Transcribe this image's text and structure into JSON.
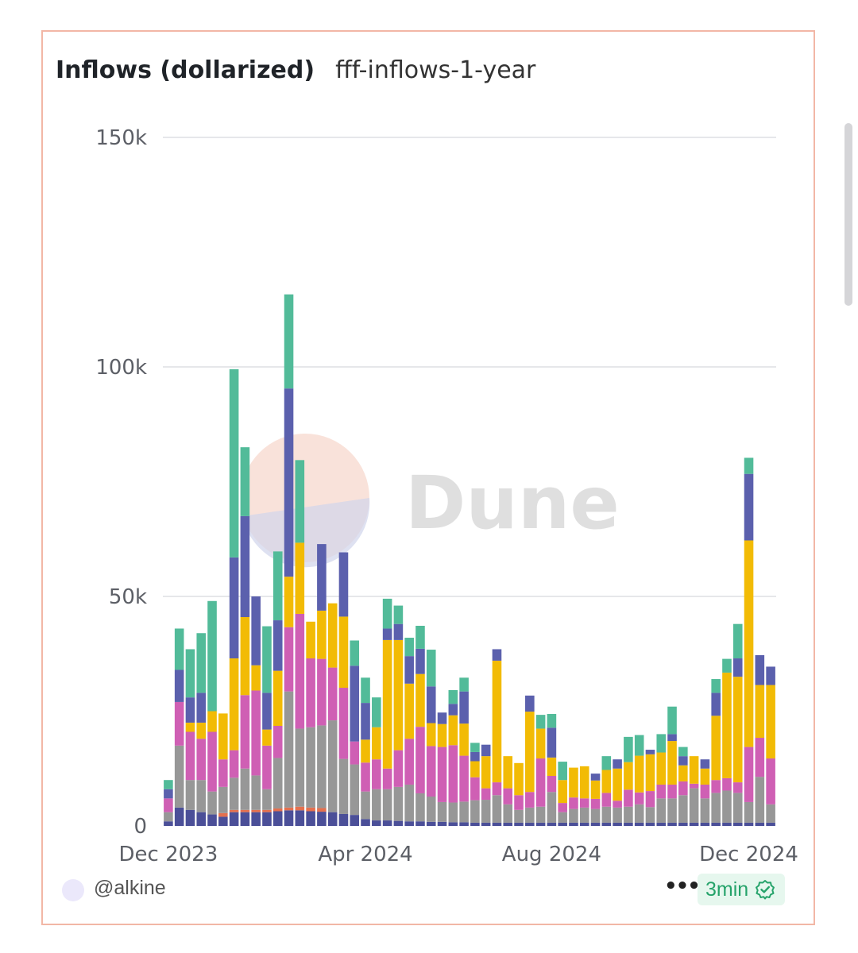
{
  "header": {
    "title": "Inflows (dollarized)",
    "subtitle": "fff-inflows-1-year"
  },
  "watermark": {
    "text": "Dune"
  },
  "footer": {
    "author": "@alkine",
    "more_icon": "more-horizontal-icon",
    "refresh_label": "3min",
    "status_icon": "check-badge-icon"
  },
  "colors": {
    "accent": "#f2b7a6",
    "badge_green": "#25a36a"
  },
  "chart_data": {
    "type": "bar",
    "stacked": true,
    "title": "",
    "xlabel": "",
    "ylabel": "",
    "ylim": [
      0,
      150000
    ],
    "y_ticks": [
      {
        "value": 0,
        "label": "0"
      },
      {
        "value": 50000,
        "label": "50k"
      },
      {
        "value": 100000,
        "label": "100k"
      },
      {
        "value": 150000,
        "label": "150k"
      }
    ],
    "x_ticks": [
      {
        "index": 0,
        "label": "Dec 2023"
      },
      {
        "index": 18,
        "label": "Apr 2024"
      },
      {
        "index": 35,
        "label": "Aug 2024"
      },
      {
        "index": 53,
        "label": "Dec 2024"
      }
    ],
    "grid": true,
    "series": [
      {
        "color": "#4b4f98",
        "values": [
          1000,
          4000,
          3500,
          3000,
          2500,
          2000,
          3000,
          3000,
          3000,
          3000,
          3200,
          3400,
          3400,
          3200,
          3100,
          3000,
          2600,
          2400,
          1500,
          1200,
          1200,
          1100,
          1000,
          1000,
          900,
          900,
          800,
          800,
          700,
          700,
          700,
          700,
          700,
          700,
          700,
          700,
          700,
          700,
          700,
          700,
          700,
          700,
          700,
          700,
          700,
          700,
          700,
          700,
          700,
          700,
          700,
          700,
          700,
          700,
          700,
          700
        ]
      },
      {
        "color": "#e4704f",
        "values": [
          0,
          0,
          0,
          0,
          0,
          800,
          500,
          500,
          500,
          500,
          600,
          600,
          800,
          800,
          800,
          0,
          0,
          0,
          0,
          0,
          0,
          0,
          0,
          0,
          0,
          0,
          0,
          0,
          0,
          0,
          0,
          0,
          0,
          0,
          0,
          0,
          0,
          0,
          0,
          0,
          0,
          0,
          0,
          0,
          0,
          0,
          0,
          0,
          0,
          0,
          0,
          0,
          0,
          0,
          0,
          0
        ]
      },
      {
        "color": "#979797",
        "values": [
          2000,
          13500,
          6500,
          7000,
          5000,
          5700,
          7000,
          9000,
          7500,
          4500,
          11000,
          25300,
          17000,
          17500,
          18000,
          20000,
          12000,
          11000,
          6000,
          6800,
          6800,
          7400,
          8000,
          6100,
          5500,
          4300,
          4300,
          4500,
          4900,
          5000,
          6000,
          4000,
          2800,
          3300,
          3500,
          6700,
          2300,
          3000,
          3300,
          3000,
          3500,
          3300,
          3500,
          4000,
          3400,
          5300,
          5300,
          6000,
          7500,
          5300,
          6500,
          7000,
          6500,
          4500,
          10000,
          4000
        ]
      },
      {
        "color": "#cf5fb4",
        "values": [
          3000,
          9500,
          10500,
          9000,
          13000,
          6000,
          6000,
          16000,
          18500,
          9500,
          7000,
          14000,
          25000,
          15000,
          14500,
          11500,
          15500,
          5000,
          6300,
          6500,
          4500,
          8000,
          10000,
          14500,
          11000,
          12000,
          12500,
          10000,
          5000,
          2500,
          2800,
          3500,
          3200,
          3400,
          10500,
          3500,
          2000,
          2500,
          2000,
          2200,
          3000,
          1500,
          3700,
          2600,
          3500,
          3000,
          3000,
          3000,
          1000,
          3000,
          2800,
          2700,
          2300,
          12000,
          8500,
          10000
        ]
      },
      {
        "color": "#f2bb05",
        "values": [
          0,
          0,
          2000,
          3500,
          4500,
          10000,
          20000,
          17000,
          5500,
          3500,
          12000,
          11000,
          15500,
          8000,
          10500,
          14000,
          15500,
          0,
          5000,
          7000,
          28000,
          24000,
          12000,
          11500,
          5000,
          5000,
          6500,
          7000,
          3500,
          7000,
          26500,
          7000,
          7000,
          17500,
          6500,
          4000,
          5000,
          6500,
          7000,
          4000,
          5000,
          7000,
          6000,
          8000,
          8000,
          7000,
          9500,
          3500,
          6000,
          3500,
          14000,
          23000,
          23000,
          45000,
          11500,
          16000
        ]
      },
      {
        "color": "#5b60ad",
        "values": [
          2000,
          7000,
          5500,
          6500,
          0,
          0,
          22000,
          22000,
          15000,
          8000,
          11000,
          41000,
          0,
          0,
          14500,
          0,
          14000,
          16500,
          8000,
          0,
          2500,
          3500,
          6000,
          5500,
          8000,
          2500,
          2500,
          7000,
          2000,
          2500,
          2500,
          0,
          0,
          3500,
          0,
          6500,
          0,
          0,
          0,
          1500,
          0,
          2000,
          0,
          0,
          1000,
          0,
          1500,
          2000,
          0,
          2000,
          5000,
          0,
          4000,
          14500,
          6500,
          4000
        ]
      },
      {
        "color": "#52bb99",
        "values": [
          2000,
          9000,
          10500,
          13000,
          24000,
          0,
          41000,
          15000,
          0,
          14500,
          15000,
          20500,
          18000,
          0,
          0,
          0,
          0,
          5500,
          5500,
          6500,
          6500,
          4000,
          4000,
          5000,
          8000,
          0,
          3000,
          3000,
          2000,
          0,
          0,
          0,
          0,
          0,
          3000,
          3000,
          4000,
          0,
          0,
          0,
          3000,
          0,
          5500,
          4500,
          0,
          4000,
          6000,
          2000,
          0,
          0,
          3000,
          3000,
          7500,
          3500,
          0,
          0
        ]
      }
    ]
  }
}
